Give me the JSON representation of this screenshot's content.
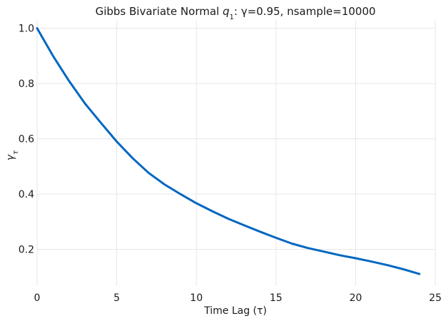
{
  "chart_data": {
    "type": "line",
    "title": "Gibbs Bivariate Normal q₁: γ=0.95, nsample=10000",
    "title_prefix": "Gibbs Bivariate Normal ",
    "title_var": "q",
    "title_sub": "1",
    "title_suffix": ": γ=0.95, nsample=10000",
    "xlabel": "Time Lag (τ)",
    "ylabel": "γτ",
    "ylabel_main": "γ",
    "ylabel_sub": "τ",
    "xlim": [
      0,
      25
    ],
    "ylim": [
      0.07,
      1.03
    ],
    "xticks": [
      0,
      5,
      10,
      15,
      20,
      25
    ],
    "xtick_labels": [
      "0",
      "5",
      "10",
      "15",
      "20",
      "25"
    ],
    "yticks": [
      0.2,
      0.4,
      0.6,
      0.8,
      1.0
    ],
    "ytick_labels": [
      "0.2",
      "0.4",
      "0.6",
      "0.8",
      "1.0"
    ],
    "grid": true,
    "series": [
      {
        "color": "#0067c0",
        "x": [
          0,
          1,
          2,
          3,
          4,
          5,
          6,
          7,
          8,
          9,
          10,
          11,
          12,
          13,
          14,
          15,
          16,
          17,
          18,
          19,
          20,
          21,
          22,
          23,
          24
        ],
        "values": [
          1.0,
          0.9,
          0.81,
          0.728,
          0.658,
          0.59,
          0.53,
          0.477,
          0.435,
          0.4,
          0.367,
          0.338,
          0.311,
          0.287,
          0.264,
          0.242,
          0.221,
          0.205,
          0.192,
          0.179,
          0.168,
          0.156,
          0.143,
          0.128,
          0.111
        ]
      }
    ]
  }
}
